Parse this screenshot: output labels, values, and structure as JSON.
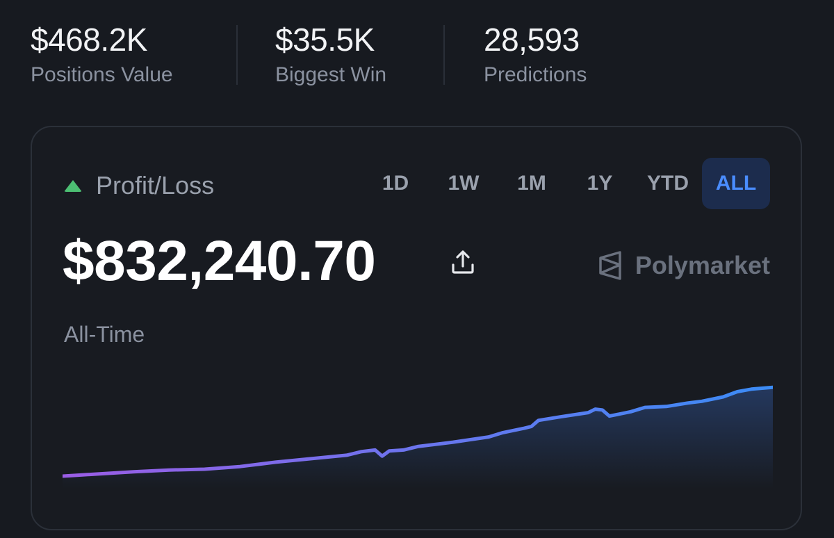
{
  "stats": [
    {
      "value": "$468.2K",
      "label": "Positions Value"
    },
    {
      "value": "$35.5K",
      "label": "Biggest Win"
    },
    {
      "value": "28,593",
      "label": "Predictions"
    }
  ],
  "card": {
    "title": "Profit/Loss",
    "trend_icon": "triangle-up-icon",
    "ranges": [
      "1D",
      "1W",
      "1M",
      "1Y",
      "YTD",
      "ALL"
    ],
    "selected_range": "ALL",
    "amount": "$832,240.70",
    "share_icon": "share-upload-icon",
    "brand": "Polymarket",
    "period": "All-Time"
  },
  "colors": {
    "background": "#171a20",
    "accent": "#4a8dff",
    "up": "#4cbf73",
    "line_start": "#9b5de5",
    "line_end": "#3b8cf6"
  },
  "chart_data": {
    "type": "area",
    "x": [
      0,
      0.02,
      0.04,
      0.06,
      0.1,
      0.15,
      0.2,
      0.25,
      0.3,
      0.35,
      0.4,
      0.42,
      0.44,
      0.45,
      0.46,
      0.48,
      0.5,
      0.55,
      0.6,
      0.62,
      0.65,
      0.66,
      0.67,
      0.7,
      0.74,
      0.75,
      0.76,
      0.77,
      0.8,
      0.82,
      0.85,
      0.88,
      0.9,
      0.93,
      0.95,
      0.97,
      1.0
    ],
    "values": [
      0.08,
      0.09,
      0.1,
      0.11,
      0.13,
      0.15,
      0.16,
      0.19,
      0.24,
      0.28,
      0.32,
      0.36,
      0.38,
      0.31,
      0.37,
      0.38,
      0.42,
      0.47,
      0.53,
      0.58,
      0.63,
      0.65,
      0.72,
      0.76,
      0.81,
      0.85,
      0.84,
      0.77,
      0.82,
      0.87,
      0.88,
      0.92,
      0.94,
      0.99,
      1.05,
      1.08,
      1.1
    ],
    "xlabel": "",
    "ylabel": "",
    "grid": false
  }
}
